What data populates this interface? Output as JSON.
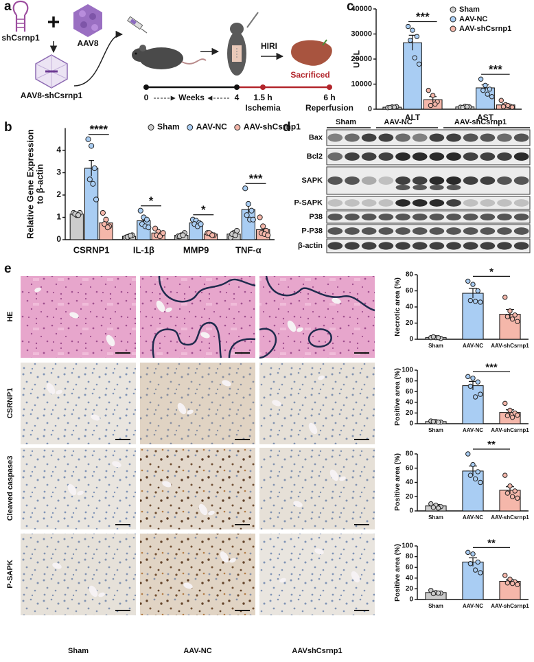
{
  "panels": [
    "a",
    "b",
    "c",
    "d",
    "e"
  ],
  "schematic": {
    "shrna": "shCsrnp1",
    "vector": "AAV8",
    "construct": "AAV8-shCsrnp1",
    "model": "HIRI",
    "endpoint": "Sacrificed",
    "timeline": {
      "start": "0",
      "unit": "Weeks",
      "injection_end": "4",
      "ischemia_time": "1.5 h",
      "ischemia": "Ischemia",
      "reperfusion_time": "6 h",
      "reperfusion": "Reperfusion"
    }
  },
  "blot": {
    "groups": [
      "Sham",
      "AAV-NC",
      "AAV-shCsrnp1"
    ],
    "rows": [
      "Bax",
      "Bcl2",
      "SAPK",
      "P-SAPK",
      "P38",
      "P-P38",
      "β-actin"
    ]
  },
  "histology": {
    "rows": [
      "HE",
      "CSRNP1",
      "Cleaved caspase3",
      "P-SAPK"
    ],
    "columns": [
      "Sham",
      "AAV-NC",
      "AAVshCsrnp1"
    ]
  },
  "chart_data": [
    {
      "type": "bar",
      "y_label": "Relative Gene Expression to β-actin",
      "categories": [
        "CSRNP1",
        "IL-1β",
        "MMP9",
        "TNF-α"
      ],
      "series": [
        {
          "name": "Sham",
          "color": "#cccccc",
          "values": [
            1.15,
            0.15,
            0.2,
            0.25
          ],
          "errors": [
            0.04,
            0.02,
            0.04,
            0.06
          ],
          "points": [
            [
              1.2,
              1.1,
              1.2,
              1.15,
              1.1
            ],
            [
              0.1,
              0.15,
              0.2,
              0.12,
              0.18
            ],
            [
              0.15,
              0.2,
              0.3,
              0.15,
              0.2
            ],
            [
              0.1,
              0.3,
              0.4,
              0.25,
              0.2
            ]
          ]
        },
        {
          "name": "AAV-NC",
          "color": "#a9cdf3",
          "values": [
            3.2,
            0.85,
            0.75,
            1.35
          ],
          "errors": [
            0.35,
            0.15,
            0.08,
            0.25
          ],
          "points": [
            [
              4.5,
              4.2,
              3.2,
              2.7,
              2.5,
              1.8
            ],
            [
              1.3,
              1.0,
              0.9,
              0.7,
              0.6,
              0.55
            ],
            [
              0.9,
              0.85,
              0.75,
              0.7,
              0.6,
              0.7
            ],
            [
              2.3,
              1.6,
              1.3,
              1.1,
              0.9,
              0.9
            ]
          ]
        },
        {
          "name": "AAV-shCsrnp1",
          "color": "#f5b7aa",
          "values": [
            0.75,
            0.3,
            0.25,
            0.45
          ],
          "errors": [
            0.12,
            0.07,
            0.05,
            0.12
          ],
          "points": [
            [
              1.2,
              0.9,
              0.6,
              0.7,
              0.55
            ],
            [
              0.5,
              0.35,
              0.25,
              0.2,
              0.15,
              0.3
            ],
            [
              0.3,
              0.25,
              0.2,
              0.3,
              0.2
            ],
            [
              1.0,
              0.6,
              0.4,
              0.3,
              0.25,
              0.2
            ]
          ]
        }
      ],
      "ylim": [
        0,
        5
      ],
      "yticks": [
        0,
        1,
        2,
        3,
        4
      ],
      "annotations": [
        "****",
        "*",
        "*",
        "***"
      ],
      "legend": "top"
    },
    {
      "type": "bar",
      "y_label": "U / L",
      "categories": [
        "ALT",
        "AST"
      ],
      "series": [
        {
          "name": "Sham",
          "color": "#cccccc",
          "values": [
            800,
            900
          ],
          "errors": [
            150,
            150
          ],
          "points": [
            [
              600,
              900,
              1000,
              700,
              800
            ],
            [
              800,
              1100,
              900,
              700,
              1000
            ]
          ]
        },
        {
          "name": "AAV-NC",
          "color": "#a9cdf3",
          "values": [
            26500,
            8500
          ],
          "errors": [
            3000,
            1200
          ],
          "points": [
            [
              33000,
              31500,
              29000,
              27500,
              20500,
              18000
            ],
            [
              12000,
              9500,
              8000,
              7500,
              6000,
              5000
            ]
          ]
        },
        {
          "name": "AAV-shCsrnp1",
          "color": "#f5b7aa",
          "values": [
            3800,
            1700
          ],
          "errors": [
            1200,
            500
          ],
          "points": [
            [
              7500,
              5500,
              3000,
              1500,
              2000
            ],
            [
              3500,
              1800,
              1200,
              1000,
              1500,
              800
            ]
          ]
        }
      ],
      "ylim": [
        0,
        40000
      ],
      "yticks": [
        0,
        10000,
        20000,
        30000,
        40000
      ],
      "annotations": [
        "***",
        "***"
      ],
      "legend": "top-right"
    },
    {
      "type": "bar",
      "y_label": "Necrotic area (%)",
      "categories": [
        "Sham",
        "AAV-NC",
        "AAV-shCsrnp1"
      ],
      "colors": [
        "#cccccc",
        "#a9cdf3",
        "#f5b7aa"
      ],
      "values": [
        2,
        57,
        31
      ],
      "errors": [
        0.5,
        6,
        6
      ],
      "points": [
        [
          2,
          2,
          1,
          3,
          2
        ],
        [
          72,
          68,
          60,
          48,
          47,
          46
        ],
        [
          52,
          35,
          30,
          28,
          25,
          22
        ]
      ],
      "ylim": [
        0,
        80
      ],
      "yticks": [
        0,
        20,
        40,
        60,
        80
      ],
      "annotation": "*"
    },
    {
      "type": "bar",
      "y_label": "Positive area (%)",
      "categories": [
        "Sham",
        "AAV-NC",
        "AAV-shCsrnp1"
      ],
      "colors": [
        "#cccccc",
        "#a9cdf3",
        "#f5b7aa"
      ],
      "values": [
        4,
        71,
        21
      ],
      "errors": [
        0.5,
        8,
        5
      ],
      "points": [
        [
          5,
          4,
          3,
          4,
          3
        ],
        [
          88,
          85,
          78,
          70,
          50,
          55
        ],
        [
          38,
          25,
          20,
          15,
          12,
          16
        ]
      ],
      "ylim": [
        0,
        100
      ],
      "yticks": [
        0,
        20,
        40,
        60,
        80,
        100
      ],
      "annotation": "***"
    },
    {
      "type": "bar",
      "y_label": "Positive area (%)",
      "categories": [
        "Sham",
        "AAV-NC",
        "AAV-shCsrnp1"
      ],
      "colors": [
        "#cccccc",
        "#a9cdf3",
        "#f5b7aa"
      ],
      "values": [
        7,
        56,
        29
      ],
      "errors": [
        2,
        7,
        5
      ],
      "points": [
        [
          10,
          8,
          6,
          5,
          4
        ],
        [
          80,
          65,
          55,
          50,
          45,
          40
        ],
        [
          50,
          35,
          28,
          25,
          20,
          18
        ]
      ],
      "ylim": [
        0,
        80
      ],
      "yticks": [
        0,
        20,
        40,
        60,
        80
      ],
      "annotation": "**"
    },
    {
      "type": "bar",
      "y_label": "Positive area (%)",
      "categories": [
        "Sham",
        "AAV-NC",
        "AAV-shCsrnp1"
      ],
      "colors": [
        "#cccccc",
        "#a9cdf3",
        "#f5b7aa"
      ],
      "values": [
        13,
        70,
        34
      ],
      "errors": [
        2,
        8,
        3
      ],
      "points": [
        [
          17,
          13,
          12,
          11,
          12
        ],
        [
          88,
          85,
          70,
          67,
          55,
          50
        ],
        [
          45,
          38,
          33,
          31,
          30,
          28
        ]
      ],
      "ylim": [
        0,
        100
      ],
      "yticks": [
        0,
        20,
        40,
        60,
        80,
        100
      ],
      "annotation": "**"
    }
  ]
}
